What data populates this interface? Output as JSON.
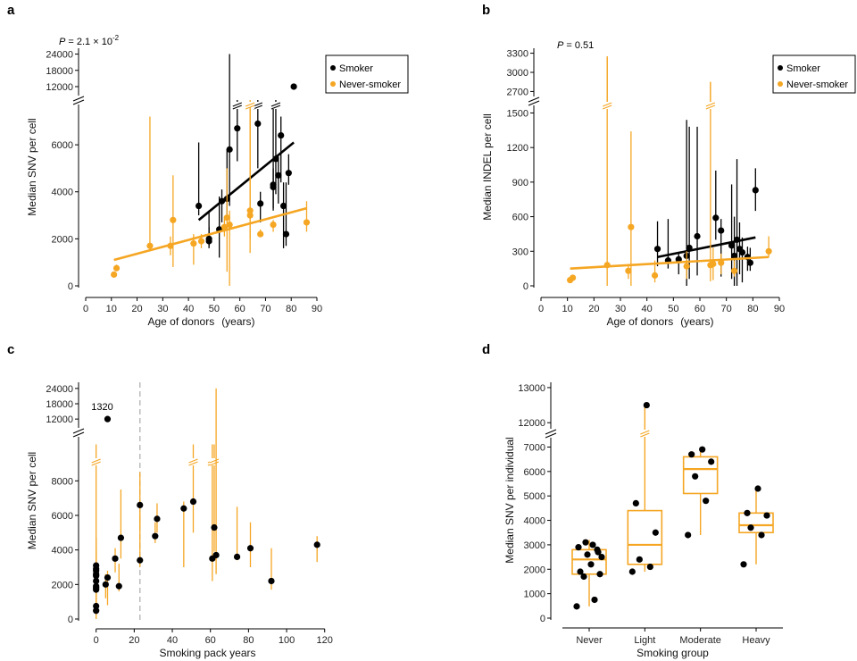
{
  "colors": {
    "smoker": "#000000",
    "never": "#f5a623",
    "box": "#f5a623",
    "dash": "#bbbbbb"
  },
  "chart_data": [
    {
      "panel": "a",
      "type": "scatter",
      "ylabel": "Median SNV per cell",
      "xlabel": "Age of donors",
      "xunit": "(years)",
      "pvalue": "P = 2.1 × 10",
      "pexp": "-2",
      "xlim": [
        0,
        90
      ],
      "xticks": [
        0,
        10,
        20,
        30,
        40,
        50,
        60,
        70,
        80,
        90
      ],
      "ylim_lower": [
        0,
        7600
      ],
      "yticks_lower": [
        0,
        2000,
        4000,
        6000
      ],
      "ylim_upper": [
        11000,
        25500
      ],
      "yticks_upper": [
        12000,
        18000,
        24000
      ],
      "ytick_labels": {
        "0": "0",
        "2000": "2000",
        "4000": "4000",
        "6000": "6000",
        "12000": "12000",
        "18000": "18000",
        "24000": "24000"
      },
      "legend": [
        "Smoker",
        "Never-smoker"
      ],
      "series": [
        {
          "name": "Smoker",
          "points": [
            {
              "x": 44,
              "y": 3400,
              "lo": 3000,
              "hi": 6100
            },
            {
              "x": 48,
              "y": 2000,
              "lo": 1700,
              "hi": 2500
            },
            {
              "x": 48,
              "y": 1900,
              "lo": 1600,
              "hi": 3200
            },
            {
              "x": 52,
              "y": 2400,
              "lo": 1200,
              "hi": 3800
            },
            {
              "x": 53,
              "y": 3600,
              "lo": 2700,
              "hi": 4100
            },
            {
              "x": 55,
              "y": 3700,
              "lo": 3000,
              "hi": 5800
            },
            {
              "x": 56,
              "y": 5800,
              "lo": 3400,
              "hi": 24000
            },
            {
              "x": 59,
              "y": 6700,
              "lo": 5300,
              "hi": 7600,
              "breakHi": true
            },
            {
              "x": 67,
              "y": 6900,
              "lo": 5000,
              "hi": 7600,
              "breakHi": true
            },
            {
              "x": 68,
              "y": 3500,
              "lo": 2700,
              "hi": 4000
            },
            {
              "x": 73,
              "y": 4300,
              "lo": 3300,
              "hi": 7600
            },
            {
              "x": 73,
              "y": 4200,
              "lo": 3200,
              "hi": 5000
            },
            {
              "x": 74,
              "y": 5400,
              "lo": 3900,
              "hi": 7600,
              "breakHi": true
            },
            {
              "x": 75,
              "y": 4700,
              "lo": 3500,
              "hi": 5500
            },
            {
              "x": 76,
              "y": 6400,
              "lo": 4400,
              "hi": 7200
            },
            {
              "x": 77,
              "y": 3400,
              "lo": 1600,
              "hi": 4400
            },
            {
              "x": 78,
              "y": 2200,
              "lo": 1700,
              "hi": 4400
            },
            {
              "x": 79,
              "y": 4800,
              "lo": 4300,
              "hi": 5600
            },
            {
              "x": 81,
              "y": 12000,
              "lo": 12000,
              "hi": 12000
            }
          ],
          "fit": [
            [
              44,
              2800
            ],
            [
              81,
              6100
            ]
          ]
        },
        {
          "name": "Never-smoker",
          "points": [
            {
              "x": 11,
              "y": 480,
              "lo": 400,
              "hi": 600
            },
            {
              "x": 12,
              "y": 750,
              "lo": 650,
              "hi": 900
            },
            {
              "x": 25,
              "y": 1700,
              "lo": 1500,
              "hi": 7200
            },
            {
              "x": 33,
              "y": 1700,
              "lo": 1300,
              "hi": 2100
            },
            {
              "x": 34,
              "y": 2800,
              "lo": 800,
              "hi": 4700
            },
            {
              "x": 42,
              "y": 1800,
              "lo": 900,
              "hi": 2200
            },
            {
              "x": 45,
              "y": 1900,
              "lo": 1600,
              "hi": 2200
            },
            {
              "x": 54,
              "y": 2500,
              "lo": 2100,
              "hi": 2900
            },
            {
              "x": 55,
              "y": 2900,
              "lo": 600,
              "hi": 5000
            },
            {
              "x": 56,
              "y": 2600,
              "lo": 0,
              "hi": 3200
            },
            {
              "x": 64,
              "y": 3000,
              "lo": 1400,
              "hi": 7600,
              "breakHi": true
            },
            {
              "x": 64,
              "y": 3200,
              "lo": 2000,
              "hi": 7600
            },
            {
              "x": 68,
              "y": 2200,
              "lo": 2100,
              "hi": 2400
            },
            {
              "x": 73,
              "y": 2600,
              "lo": 2300,
              "hi": 2800
            },
            {
              "x": 86,
              "y": 2700,
              "lo": 2300,
              "hi": 3600
            }
          ],
          "fit": [
            [
              11,
              1100
            ],
            [
              86,
              3300
            ]
          ]
        }
      ]
    },
    {
      "panel": "b",
      "type": "scatter",
      "ylabel": "Median INDEL per cell",
      "xlabel": "Age of donors",
      "xunit": "(years)",
      "pvalue": "P = 0.51",
      "xlim": [
        0,
        90
      ],
      "xticks": [
        0,
        10,
        20,
        30,
        40,
        50,
        60,
        70,
        80,
        90
      ],
      "ylim_lower": [
        0,
        1550
      ],
      "yticks_lower": [
        0,
        300,
        600,
        900,
        1200,
        1500
      ],
      "ylim_upper": [
        2650,
        3350
      ],
      "yticks_upper": [
        2700,
        3000,
        3300
      ],
      "legend": [
        "Smoker",
        "Never-smoker"
      ],
      "series": [
        {
          "name": "Smoker",
          "points": [
            {
              "x": 44,
              "y": 320,
              "lo": 170,
              "hi": 560
            },
            {
              "x": 48,
              "y": 220,
              "lo": 150,
              "hi": 580
            },
            {
              "x": 52,
              "y": 230,
              "lo": 100,
              "hi": 290
            },
            {
              "x": 55,
              "y": 260,
              "lo": 0,
              "hi": 1440
            },
            {
              "x": 56,
              "y": 330,
              "lo": 60,
              "hi": 1380
            },
            {
              "x": 59,
              "y": 430,
              "lo": 90,
              "hi": 1380
            },
            {
              "x": 66,
              "y": 590,
              "lo": 400,
              "hi": 1000
            },
            {
              "x": 68,
              "y": 480,
              "lo": 80,
              "hi": 580
            },
            {
              "x": 72,
              "y": 350,
              "lo": 60,
              "hi": 880
            },
            {
              "x": 73,
              "y": 260,
              "lo": 0,
              "hi": 600
            },
            {
              "x": 74,
              "y": 400,
              "lo": 0,
              "hi": 1100
            },
            {
              "x": 75,
              "y": 320,
              "lo": 100,
              "hi": 550
            },
            {
              "x": 76,
              "y": 290,
              "lo": 30,
              "hi": 420
            },
            {
              "x": 78,
              "y": 250,
              "lo": 130,
              "hi": 340
            },
            {
              "x": 79,
              "y": 200,
              "lo": 130,
              "hi": 330
            },
            {
              "x": 81,
              "y": 830,
              "lo": 650,
              "hi": 1020
            }
          ],
          "fit": [
            [
              44,
              250
            ],
            [
              81,
              420
            ]
          ]
        },
        {
          "name": "Never-smoker",
          "points": [
            {
              "x": 11,
              "y": 50,
              "lo": 30,
              "hi": 70
            },
            {
              "x": 12,
              "y": 70,
              "lo": 50,
              "hi": 90
            },
            {
              "x": 25,
              "y": 180,
              "lo": 0,
              "hi": 3250,
              "breakHi": true
            },
            {
              "x": 33,
              "y": 130,
              "lo": 60,
              "hi": 190
            },
            {
              "x": 34,
              "y": 510,
              "lo": 0,
              "hi": 1340
            },
            {
              "x": 43,
              "y": 90,
              "lo": 30,
              "hi": 220
            },
            {
              "x": 55,
              "y": 170,
              "lo": 60,
              "hi": 300
            },
            {
              "x": 64,
              "y": 180,
              "lo": 40,
              "hi": 2850,
              "breakHi": true
            },
            {
              "x": 65,
              "y": 190,
              "lo": 50,
              "hi": 330
            },
            {
              "x": 68,
              "y": 200,
              "lo": 100,
              "hi": 280
            },
            {
              "x": 73,
              "y": 130,
              "lo": 80,
              "hi": 220
            },
            {
              "x": 86,
              "y": 300,
              "lo": 250,
              "hi": 430
            }
          ],
          "fit": [
            [
              11,
              150
            ],
            [
              86,
              250
            ]
          ]
        }
      ]
    },
    {
      "panel": "c",
      "type": "scatter",
      "ylabel": "Median SNV per cell",
      "xlabel": "Smoking pack years",
      "annotation": "1320",
      "dashed_x": 23,
      "xlim": [
        -5,
        122
      ],
      "xticks": [
        0,
        20,
        40,
        60,
        80,
        100,
        120
      ],
      "ylim_lower": [
        0,
        9000
      ],
      "yticks_lower": [
        0,
        2000,
        4000,
        6000,
        8000
      ],
      "ylim_upper": [
        11000,
        25000
      ],
      "yticks_upper": [
        12000,
        18000,
        24000
      ],
      "series": [
        {
          "name": "Pack years",
          "points": [
            {
              "x": 0,
              "y": 480,
              "lo": 400,
              "hi": 600
            },
            {
              "x": 0,
              "y": 750,
              "lo": 650,
              "hi": 900
            },
            {
              "x": 0,
              "y": 1700,
              "lo": 1500,
              "hi": 2000
            },
            {
              "x": 0,
              "y": 1800,
              "lo": 1600,
              "hi": 2100
            },
            {
              "x": 0,
              "y": 1900,
              "lo": 1700,
              "hi": 2200
            },
            {
              "x": 0,
              "y": 2200,
              "lo": 2000,
              "hi": 2400
            },
            {
              "x": 0,
              "y": 2500,
              "lo": 2100,
              "hi": 2900
            },
            {
              "x": 0,
              "y": 2600,
              "lo": 0,
              "hi": 3200
            },
            {
              "x": 0,
              "y": 2800,
              "lo": 800,
              "hi": 4700
            },
            {
              "x": 0,
              "y": 2900,
              "lo": 600,
              "hi": 9000,
              "breakHi": true
            },
            {
              "x": 0,
              "y": 3100,
              "lo": 2000,
              "hi": 4000
            },
            {
              "x": 5,
              "y": 2000,
              "lo": 1200,
              "hi": 2600
            },
            {
              "x": 6,
              "y": 2400,
              "lo": 800,
              "hi": 2800
            },
            {
              "x": 6,
              "y": 12000,
              "lo": 12000,
              "hi": 12000
            },
            {
              "x": 10,
              "y": 3500,
              "lo": 2700,
              "hi": 4100
            },
            {
              "x": 12,
              "y": 1900,
              "lo": 1600,
              "hi": 3200
            },
            {
              "x": 13,
              "y": 4700,
              "lo": 3500,
              "hi": 7500
            },
            {
              "x": 23,
              "y": 6600,
              "lo": 5300,
              "hi": 8500
            },
            {
              "x": 23,
              "y": 3400,
              "lo": 3000,
              "hi": 6100
            },
            {
              "x": 31,
              "y": 4800,
              "lo": 4400,
              "hi": 5600
            },
            {
              "x": 32,
              "y": 5800,
              "lo": 5000,
              "hi": 6700
            },
            {
              "x": 46,
              "y": 6400,
              "lo": 3000,
              "hi": 6800
            },
            {
              "x": 51,
              "y": 6800,
              "lo": 5000,
              "hi": 9000,
              "breakHi": true
            },
            {
              "x": 61,
              "y": 3500,
              "lo": 2200,
              "hi": 9000,
              "breakHi": true
            },
            {
              "x": 62,
              "y": 5300,
              "lo": 3900,
              "hi": 9000,
              "breakHi": true
            },
            {
              "x": 63,
              "y": 3700,
              "lo": 2600,
              "hi": 24000
            },
            {
              "x": 74,
              "y": 3600,
              "lo": 3400,
              "hi": 6500
            },
            {
              "x": 81,
              "y": 4100,
              "lo": 3000,
              "hi": 5600
            },
            {
              "x": 92,
              "y": 2200,
              "lo": 1700,
              "hi": 4100
            },
            {
              "x": 116,
              "y": 4300,
              "lo": 3300,
              "hi": 4800
            }
          ]
        }
      ]
    },
    {
      "panel": "d",
      "type": "box",
      "ylabel": "Median SNV per individual",
      "xlabel": "Smoking group",
      "categories": [
        "Never",
        "Light",
        "Moderate",
        "Heavy"
      ],
      "ylim_lower": [
        0,
        7200
      ],
      "yticks_lower": [
        0,
        1000,
        2000,
        3000,
        4000,
        5000,
        6000,
        7000
      ],
      "ylim_upper": [
        11700,
        13100
      ],
      "yticks_upper": [
        12000,
        13000
      ],
      "boxes": [
        {
          "q1": 1800,
          "median": 2400,
          "q3": 2800,
          "wlo": 480,
          "whi": 3200
        },
        {
          "q1": 2200,
          "median": 3000,
          "q3": 4400,
          "wlo": 1900,
          "whi": 7200
        },
        {
          "q1": 5100,
          "median": 6100,
          "q3": 6600,
          "wlo": 3400,
          "whi": 7000
        },
        {
          "q1": 3500,
          "median": 3800,
          "q3": 4300,
          "wlo": 2200,
          "whi": 5300
        }
      ],
      "points": [
        [
          480,
          750,
          1700,
          1800,
          1900,
          2200,
          2500,
          2600,
          2800,
          2900,
          3000,
          3100,
          2700
        ],
        [
          1900,
          2100,
          2400,
          3500,
          4700,
          12500
        ],
        [
          3400,
          4800,
          5800,
          6400,
          6700,
          6900
        ],
        [
          2200,
          3400,
          3700,
          4200,
          4300,
          5300
        ]
      ]
    }
  ]
}
